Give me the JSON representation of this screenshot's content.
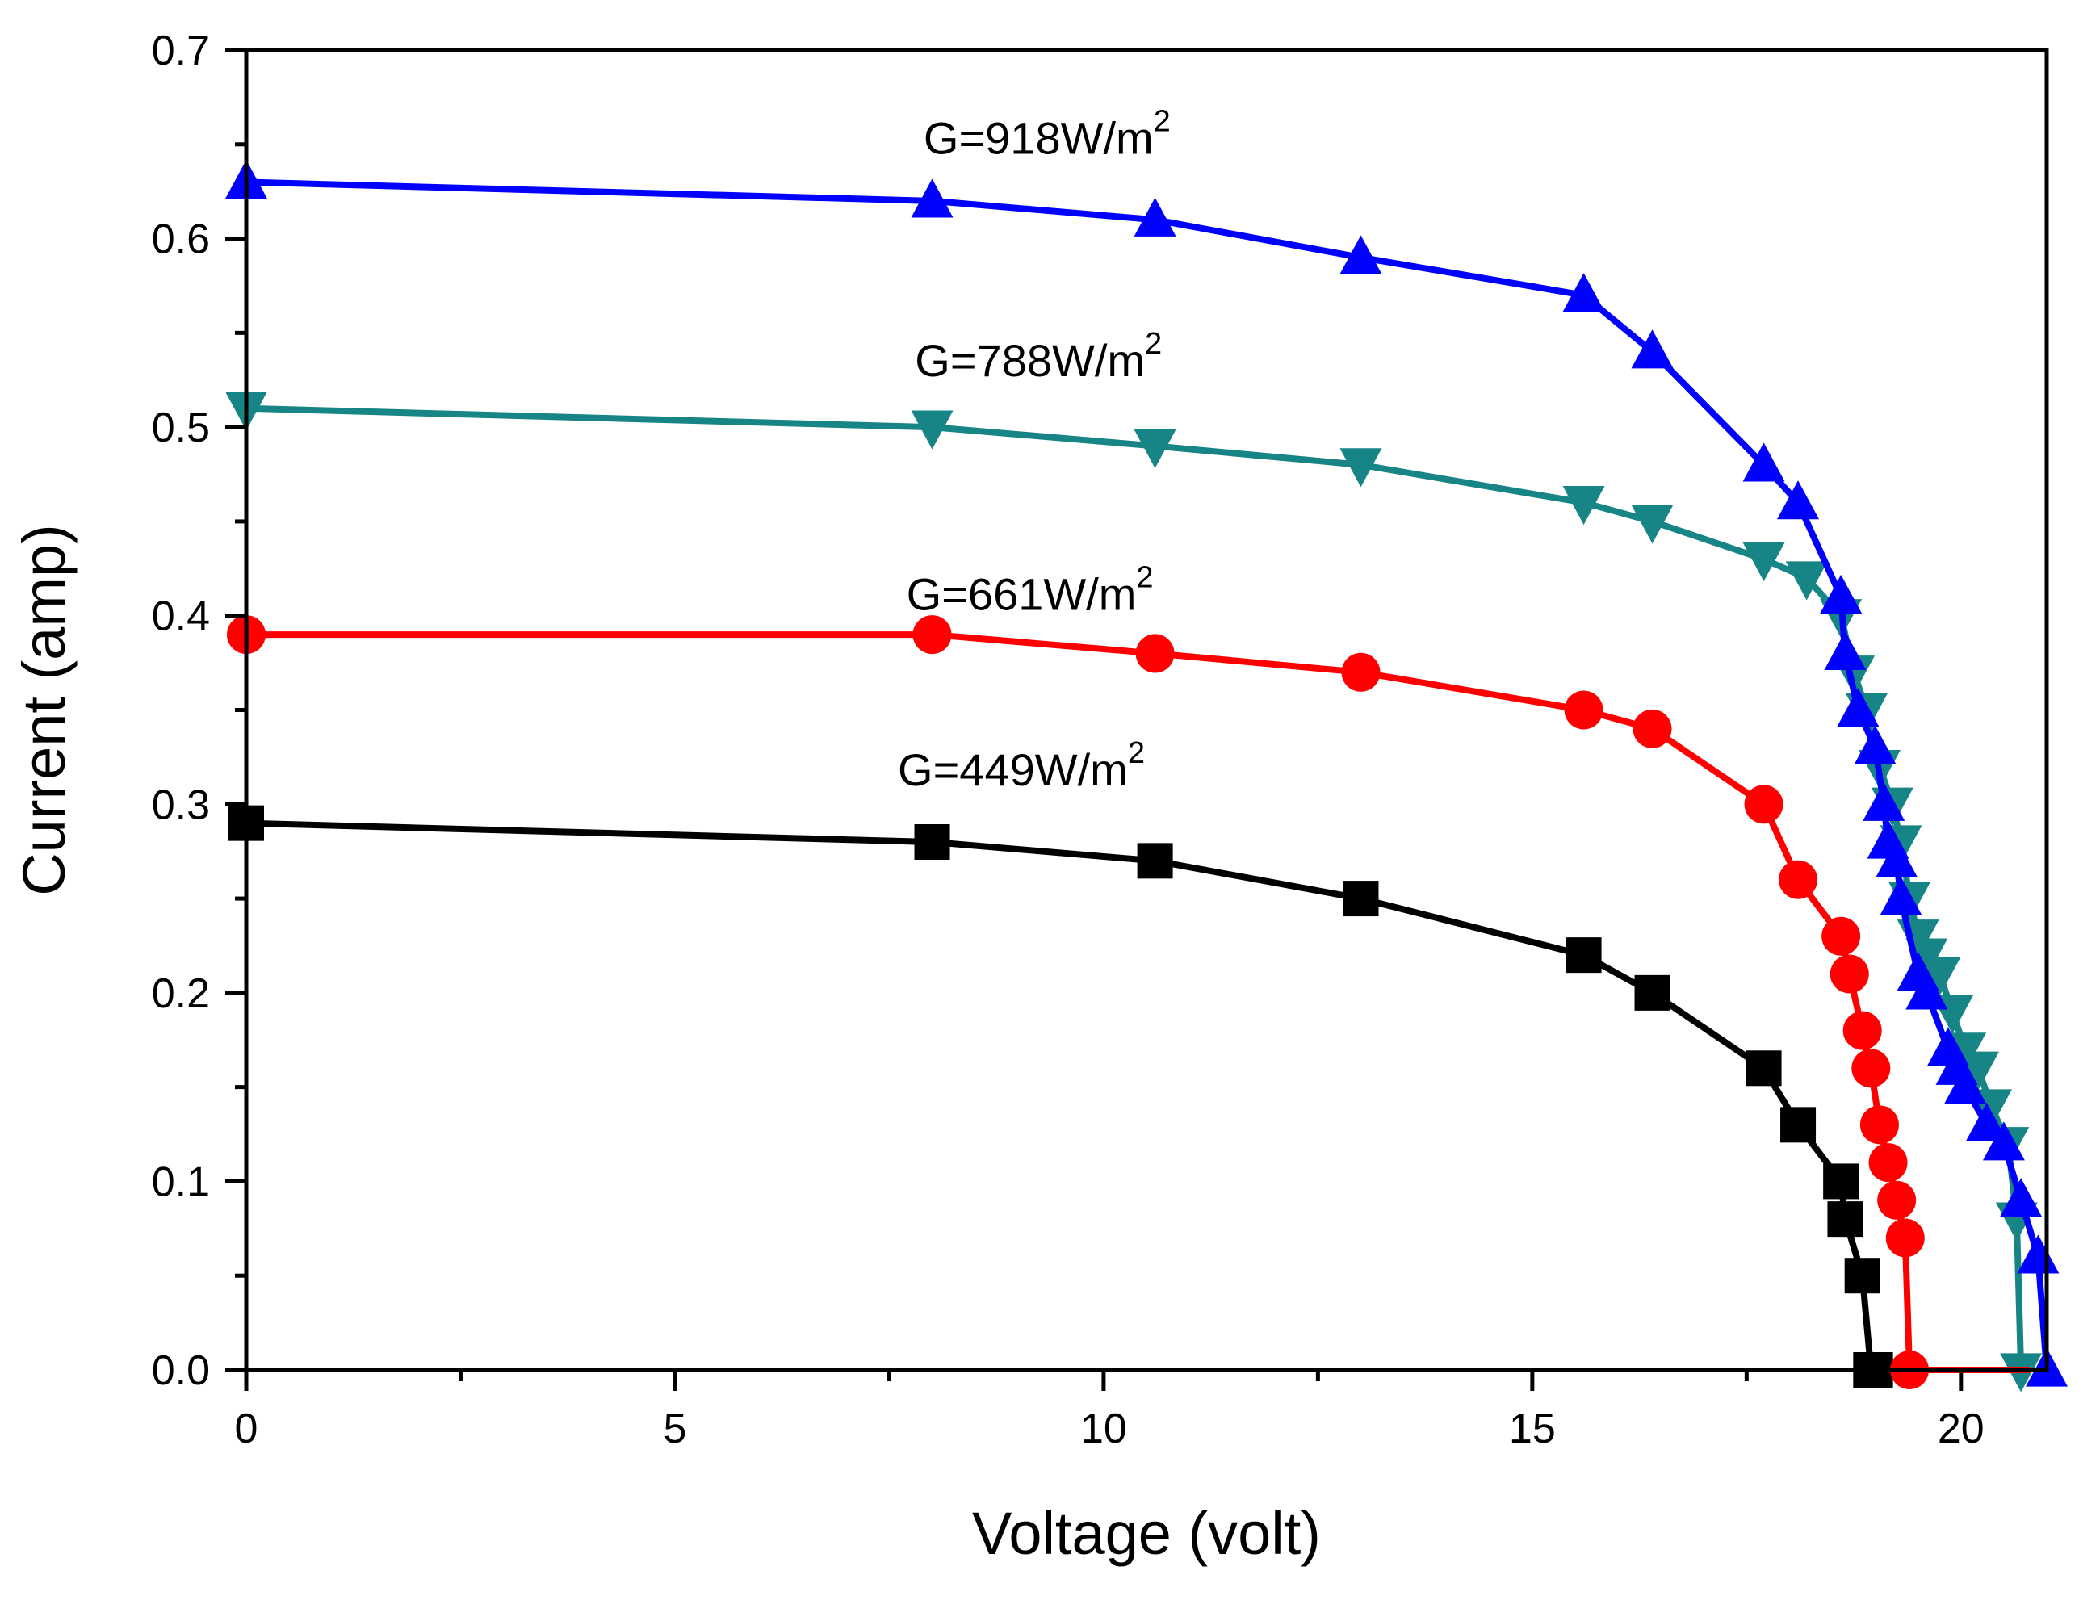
{
  "chart_data": {
    "type": "line",
    "title": "",
    "xlabel": "Voltage (volt)",
    "ylabel": "Current (amp)",
    "xlim": [
      0,
      21
    ],
    "ylim": [
      0,
      0.7
    ],
    "xticks": [
      0,
      5,
      10,
      15,
      20
    ],
    "yticks": [
      0.0,
      0.1,
      0.2,
      0.3,
      0.4,
      0.5,
      0.6,
      0.7
    ],
    "ytick_labels": [
      "0.0",
      "0.1",
      "0.2",
      "0.3",
      "0.4",
      "0.5",
      "0.6",
      "0.7"
    ],
    "xtick_labels": [
      "0",
      "5",
      "10",
      "15",
      "20"
    ],
    "grid": false,
    "legend": "none",
    "series": [
      {
        "name": "G=918W/m2",
        "label_main": "G=918W/m",
        "label_sup": "2",
        "color": "#0000ff",
        "marker": "triangle-up",
        "x": [
          0,
          8,
          10.6,
          13,
          15.6,
          16.4,
          17.7,
          18.1,
          18.6,
          18.65,
          18.8,
          19.0,
          19.1,
          19.15,
          19.25,
          19.3,
          19.5,
          19.6,
          19.85,
          19.95,
          20.05,
          20.3,
          20.5,
          20.7,
          20.9,
          21.0
        ],
        "y": [
          0.63,
          0.62,
          0.61,
          0.59,
          0.57,
          0.54,
          0.48,
          0.46,
          0.41,
          0.38,
          0.35,
          0.33,
          0.3,
          0.28,
          0.27,
          0.25,
          0.21,
          0.2,
          0.17,
          0.16,
          0.15,
          0.13,
          0.12,
          0.09,
          0.06,
          0.0
        ]
      },
      {
        "name": "G=788W/m2",
        "label_main": "G=788W/m",
        "label_sup": "2",
        "color": "#178585",
        "marker": "triangle-down",
        "x": [
          0,
          8,
          10.6,
          13,
          15.6,
          16.4,
          17.7,
          18.2,
          18.6,
          18.75,
          18.9,
          19.05,
          19.2,
          19.3,
          19.4,
          19.5,
          19.6,
          19.75,
          19.9,
          20.05,
          20.2,
          20.35,
          20.55,
          20.65,
          20.7
        ],
        "y": [
          0.51,
          0.5,
          0.49,
          0.48,
          0.46,
          0.45,
          0.43,
          0.42,
          0.4,
          0.37,
          0.35,
          0.32,
          0.3,
          0.28,
          0.25,
          0.23,
          0.22,
          0.21,
          0.19,
          0.17,
          0.16,
          0.14,
          0.12,
          0.08,
          0.0
        ]
      },
      {
        "name": "G=661W/m2",
        "label_main": "G=661W/m",
        "label_sup": "2",
        "color": "#ff0000",
        "marker": "circle",
        "x": [
          0,
          8,
          10.6,
          13,
          15.6,
          16.4,
          17.7,
          18.1,
          18.6,
          18.7,
          18.85,
          18.95,
          19.05,
          19.15,
          19.25,
          19.35,
          19.4
        ],
        "y": [
          0.39,
          0.39,
          0.38,
          0.37,
          0.35,
          0.34,
          0.3,
          0.26,
          0.23,
          0.21,
          0.18,
          0.16,
          0.13,
          0.11,
          0.09,
          0.07,
          0.0
        ]
      },
      {
        "name": "G=449W/m2",
        "label_main": "G=449W/m",
        "label_sup": "2",
        "color": "#000000",
        "marker": "square",
        "x": [
          0,
          8,
          10.6,
          13,
          15.6,
          16.4,
          17.7,
          18.1,
          18.6,
          18.65,
          18.85,
          18.95,
          19.0
        ],
        "y": [
          0.29,
          0.28,
          0.27,
          0.25,
          0.22,
          0.2,
          0.16,
          0.13,
          0.1,
          0.08,
          0.05,
          0.0,
          0.0
        ]
      }
    ],
    "annotations": [
      {
        "series": 0,
        "text": "G=918W/m",
        "sup": "2",
        "at_x": 7.9,
        "at_y": 0.645
      },
      {
        "series": 1,
        "text": "G=788W/m",
        "sup": "2",
        "at_x": 7.8,
        "at_y": 0.527
      },
      {
        "series": 2,
        "text": "G=661W/m",
        "sup": "2",
        "at_x": 7.7,
        "at_y": 0.403
      },
      {
        "series": 3,
        "text": "G=449W/m",
        "sup": "2",
        "at_x": 7.6,
        "at_y": 0.31
      }
    ],
    "zero_baseline_points": {
      "x": [
        19.4,
        19.6,
        19.8,
        20.0,
        20.2,
        20.4,
        20.6,
        20.8
      ],
      "y": [
        0,
        0,
        0,
        0,
        0,
        0,
        0,
        0
      ]
    }
  }
}
